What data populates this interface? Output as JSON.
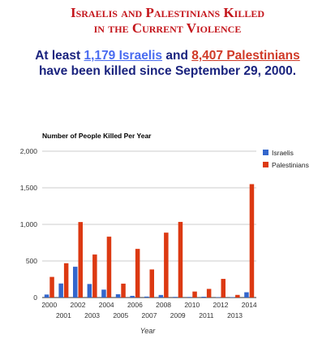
{
  "header": {
    "title_line1": "Israelis and Palestinians Killed",
    "title_line2": "in the Current Violence",
    "sub_pre": "At least ",
    "israelis_count_link": "1,179 Israelis",
    "sub_and": " and ",
    "palestinians_count_link": "8,407 Palestinians",
    "sub_line2": "have been killed since September 29, 2000."
  },
  "colors": {
    "title": "#c4161c",
    "subhead": "#1a237e",
    "israelis": "#3366cc",
    "palestinians": "#dc3912"
  },
  "chart_data": {
    "type": "bar",
    "title": "Number of People Killed Per Year",
    "xlabel": "Year",
    "ylabel": "",
    "ylim": [
      0,
      2000
    ],
    "yticks": [
      "0",
      "500",
      "1,000",
      "1,500",
      "2,000"
    ],
    "ytick_values": [
      0,
      500,
      1000,
      1500,
      2000
    ],
    "grid": true,
    "legend_position": "right",
    "categories": [
      "2000",
      "2001",
      "2002",
      "2003",
      "2004",
      "2005",
      "2006",
      "2007",
      "2008",
      "2009",
      "2010",
      "2011",
      "2012",
      "2013",
      "2014"
    ],
    "series": [
      {
        "name": "Israelis",
        "values": [
          41,
          192,
          421,
          185,
          108,
          45,
          23,
          13,
          35,
          9,
          8,
          11,
          6,
          6,
          72
        ]
      },
      {
        "name": "Palestinians",
        "values": [
          282,
          469,
          1032,
          588,
          832,
          190,
          665,
          384,
          887,
          1034,
          82,
          118,
          255,
          36,
          1550
        ]
      }
    ]
  }
}
